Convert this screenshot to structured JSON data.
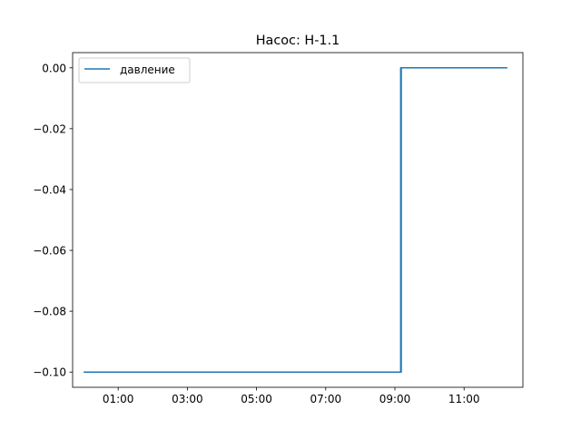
{
  "chart_data": {
    "type": "line",
    "title": "Насос: Н-1.1",
    "xlabel": "",
    "ylabel": "",
    "x_unit": "time of day (HH:MM)",
    "xlim": [
      "00:00",
      "12:30"
    ],
    "ylim": [
      -0.105,
      0.005
    ],
    "x_ticks": [
      "01:00",
      "03:00",
      "05:00",
      "07:00",
      "09:00",
      "11:00"
    ],
    "y_ticks": [
      "0.00",
      "−0.02",
      "−0.04",
      "−0.06",
      "−0.08",
      "−0.10"
    ],
    "legend": {
      "position": "upper-left",
      "entries": [
        "давление"
      ]
    },
    "grid": false,
    "series": [
      {
        "name": "давление",
        "color": "#1f77b4",
        "points": [
          {
            "x": "00:00",
            "y": -0.1
          },
          {
            "x": "09:10",
            "y": -0.1
          },
          {
            "x": "09:10",
            "y": 0.0
          },
          {
            "x": "09:11",
            "y": -0.1
          },
          {
            "x": "09:11",
            "y": 0.0
          },
          {
            "x": "12:15",
            "y": 0.0
          }
        ]
      }
    ]
  }
}
